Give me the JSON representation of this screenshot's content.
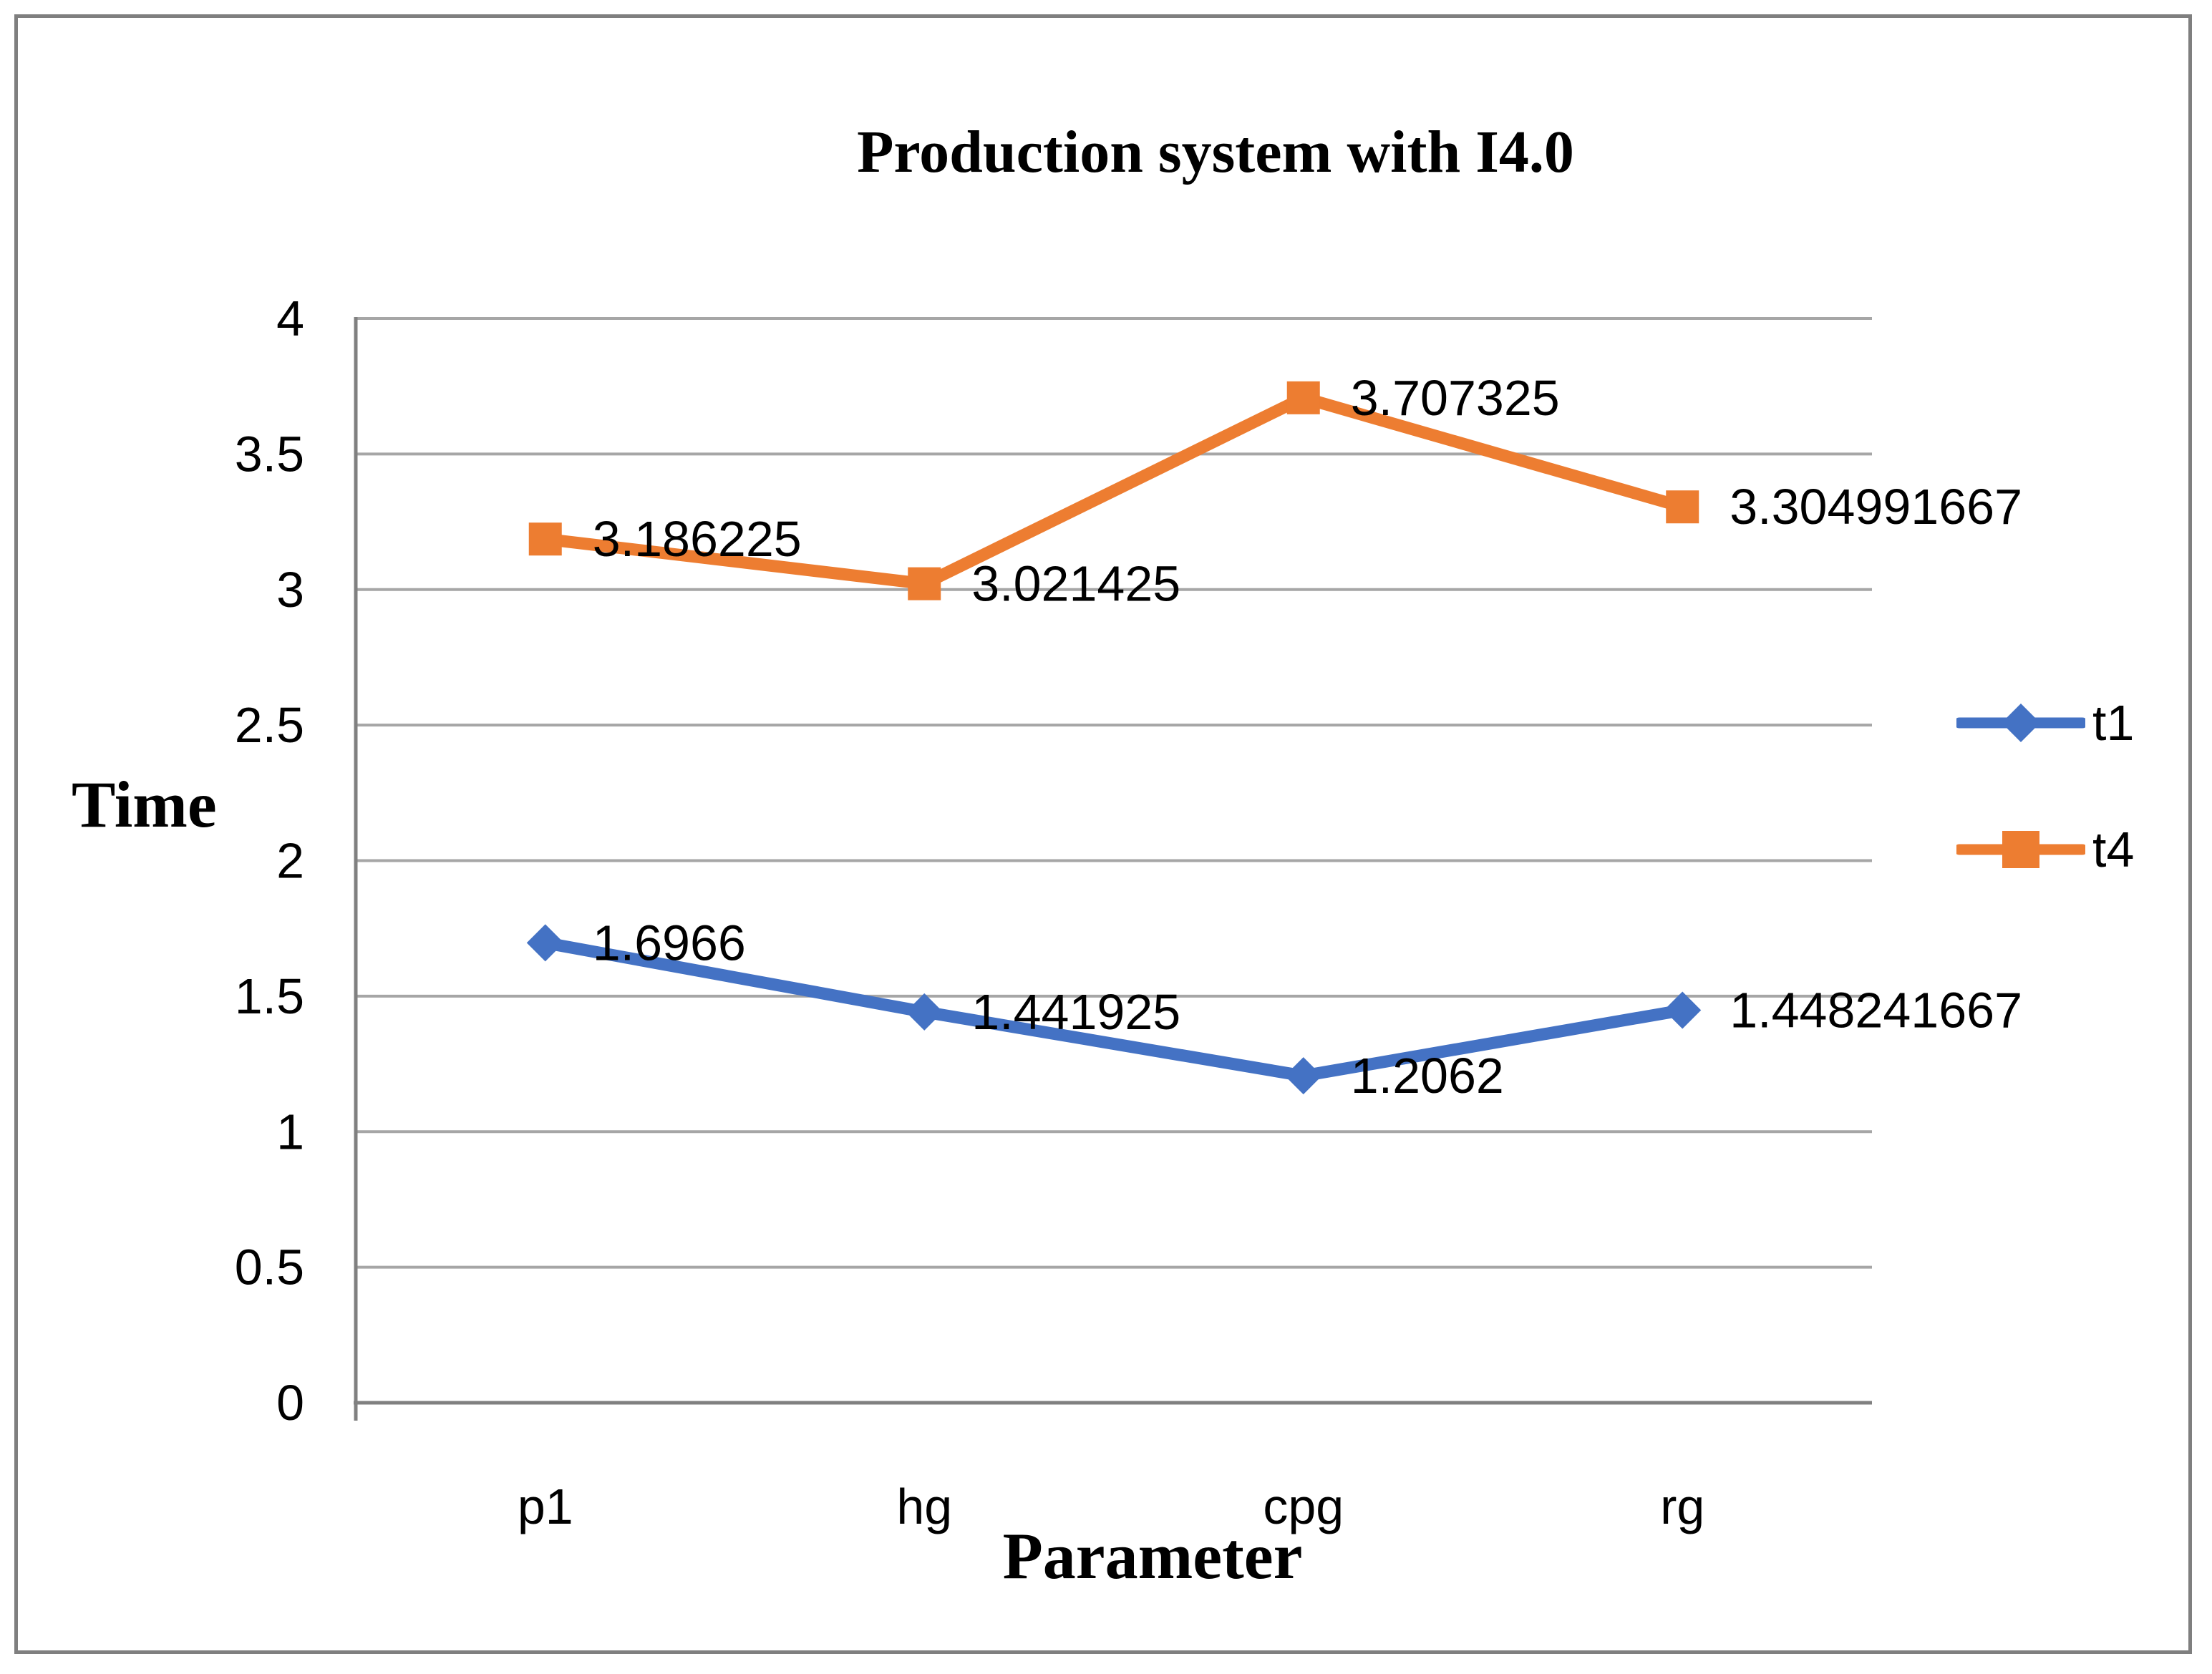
{
  "figure": {
    "border_color": "#7f7f7f"
  },
  "chart_data": {
    "type": "line",
    "title": "Production system with I4.0",
    "xlabel": "Parameter",
    "ylabel": "Time",
    "categories": [
      "p1",
      "hg",
      "cpg",
      "rg"
    ],
    "series": [
      {
        "name": "t1",
        "color": "#4472C4",
        "marker": "diamond",
        "values": [
          1.6966,
          1.441925,
          1.2062,
          1.448241667
        ],
        "labels": [
          "1.6966",
          "1.441925",
          "1.2062",
          "1.448241667"
        ]
      },
      {
        "name": "t4",
        "color": "#ED7D31",
        "marker": "square",
        "values": [
          3.186225,
          3.021425,
          3.707325,
          3.304991667
        ],
        "labels": [
          "3.186225",
          "3.021425",
          "3.707325",
          "3.304991667"
        ]
      }
    ],
    "ylim": [
      0,
      4
    ],
    "ytick_step": 0.5,
    "yticks": [
      "4",
      "3.5",
      "3",
      "2.5",
      "2",
      "1.5",
      "1",
      "0.5",
      "0"
    ],
    "grid": true,
    "legend_position": "right",
    "colors": {
      "gridline": "#a6a6a6",
      "axis": "#808080",
      "text": "#000000"
    }
  }
}
